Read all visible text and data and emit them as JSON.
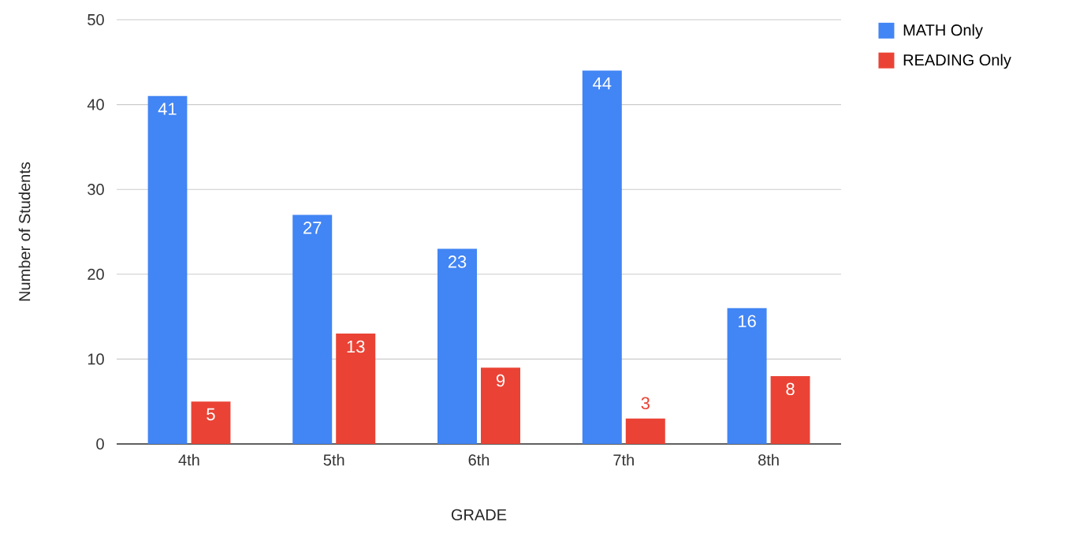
{
  "chart_data": {
    "type": "bar",
    "xlabel": "GRADE",
    "ylabel": "Number of Students",
    "categories": [
      "4th",
      "5th",
      "6th",
      "7th",
      "8th"
    ],
    "series": [
      {
        "name": "MATH Only",
        "color": "#4285f4",
        "values": [
          41,
          27,
          23,
          44,
          16
        ]
      },
      {
        "name": "READING Only",
        "color": "#ea4335",
        "values": [
          5,
          13,
          9,
          3,
          8
        ]
      }
    ],
    "ylim": [
      0,
      50
    ],
    "yticks": [
      0,
      10,
      20,
      30,
      40,
      50
    ],
    "grid": "y",
    "legend": "top right",
    "data_labels": true
  }
}
